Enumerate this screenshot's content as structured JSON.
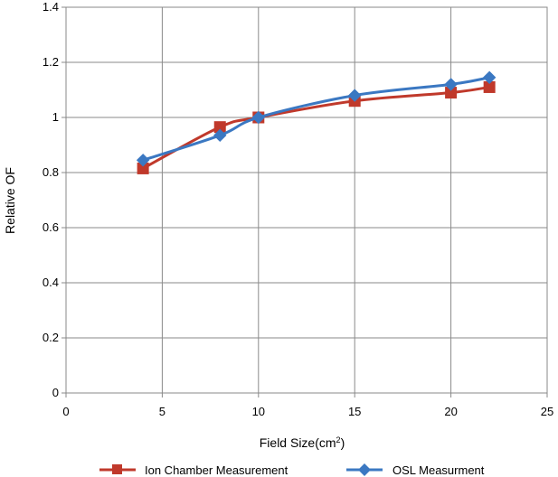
{
  "chart_data": {
    "type": "line",
    "title": "",
    "xlabel": "Field Size(cm",
    "xlabel_superscript": "2",
    "xlabel_suffix": ")",
    "ylabel": "Relative OF",
    "xlim": [
      0,
      25
    ],
    "ylim": [
      0,
      1.4
    ],
    "x_ticks": [
      "0",
      "5",
      "10",
      "15",
      "20",
      "25"
    ],
    "y_ticks": [
      "0",
      "0.2",
      "0.4",
      "0.6",
      "0.8",
      "1",
      "1.2",
      "1.4"
    ],
    "grid": true,
    "legend_position": "bottom",
    "series": [
      {
        "name": "Ion Chamber Measurement",
        "color": "#C0392B",
        "marker": "square",
        "x": [
          4,
          8,
          10,
          15,
          20,
          22
        ],
        "values": [
          0.815,
          0.965,
          1.0,
          1.06,
          1.09,
          1.11
        ]
      },
      {
        "name": "OSL Measurment",
        "color": "#3B78C2",
        "marker": "diamond",
        "x": [
          4,
          8,
          10,
          15,
          20,
          22
        ],
        "values": [
          0.845,
          0.935,
          1.0,
          1.08,
          1.12,
          1.145
        ]
      }
    ]
  }
}
